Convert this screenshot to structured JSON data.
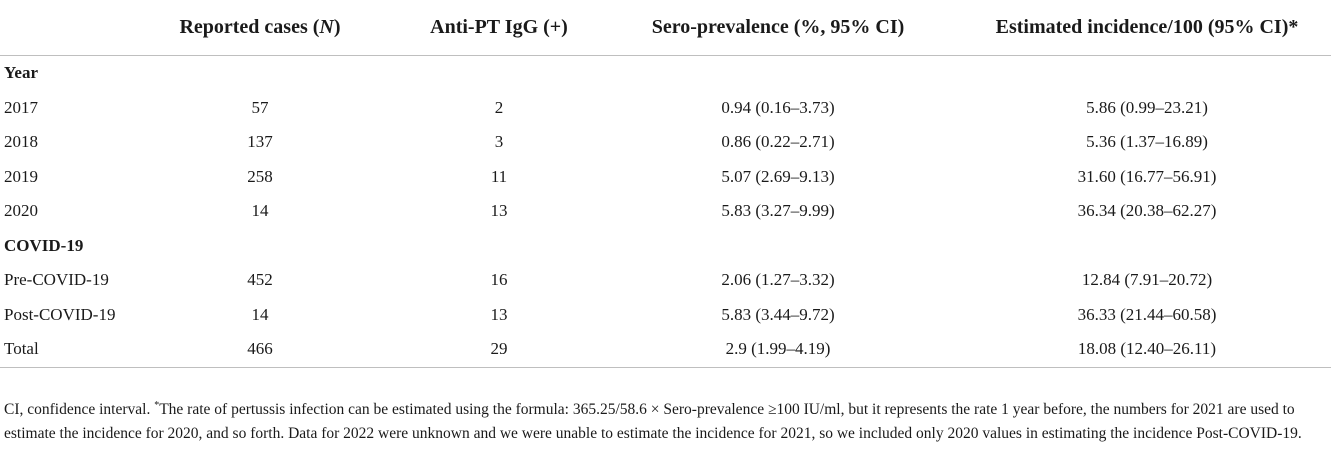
{
  "table": {
    "headers": [
      "",
      "Reported cases (N)",
      "Anti-PT IgG (+)",
      "Sero-prevalence (%, 95% CI)",
      "Estimated incidence/100 (95% CI)*"
    ],
    "sections": [
      {
        "title": "Year",
        "rows": [
          [
            "2017",
            "57",
            "2",
            "0.94 (0.16–3.73)",
            "5.86 (0.99–23.21)"
          ],
          [
            "2018",
            "137",
            "3",
            "0.86 (0.22–2.71)",
            "5.36 (1.37–16.89)"
          ],
          [
            "2019",
            "258",
            "11",
            "5.07 (2.69–9.13)",
            "31.60 (16.77–56.91)"
          ],
          [
            "2020",
            "14",
            "13",
            "5.83 (3.27–9.99)",
            "36.34 (20.38–62.27)"
          ]
        ]
      },
      {
        "title": "COVID-19",
        "rows": [
          [
            "Pre-COVID-19",
            "452",
            "16",
            "2.06 (1.27–3.32)",
            "12.84 (7.91–20.72)"
          ],
          [
            "Post-COVID-19",
            "14",
            "13",
            "5.83 (3.44–9.72)",
            "36.33 (21.44–60.58)"
          ],
          [
            "Total",
            "466",
            "29",
            "2.9 (1.99–4.19)",
            "18.08 (12.40–26.11)"
          ]
        ]
      }
    ]
  },
  "footnote": {
    "part1": "CI, confidence interval. ",
    "marker": "*",
    "part2": "The rate of pertussis infection can be estimated using the formula: 365.25/58.6 × Sero-prevalence ≥100 IU/ml, but it represents the rate 1 year before, the numbers for 2021 are used to estimate the incidence for 2020, and so forth. Data for 2022 were unknown and we were unable to estimate the incidence for 2021, so we included only 2020 values in estimating the incidence Post-COVID-19."
  }
}
